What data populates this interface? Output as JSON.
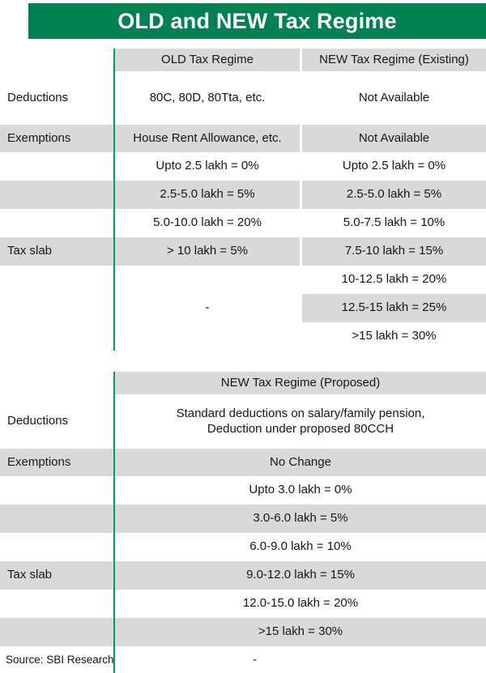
{
  "title": "OLD and NEW Tax Regime",
  "colors": {
    "banner_green": "#008153",
    "divider_green": "#009e5b",
    "stripe_gray": "#d9d9d9",
    "title_text": "#ffffff"
  },
  "footer": {
    "source": "Source: SBI Research",
    "dash": "-"
  },
  "chart_data": [
    {
      "type": "table",
      "col_headers": {
        "old": "OLD Tax Regime",
        "new": "NEW Tax Regime (Existing)"
      },
      "deductions": {
        "label": "Deductions",
        "old": "80C, 80D, 80Tta, etc.",
        "new": "Not Available"
      },
      "exemptions": {
        "label": "Exemptions",
        "old": "House Rent Allowance, etc.",
        "new": "Not Available"
      },
      "tax_slab": {
        "label": "Tax slab",
        "old": [
          "Upto 2.5 lakh = 0%",
          "2.5-5.0 lakh = 5%",
          "5.0-10.0 lakh = 20%",
          "> 10 lakh  = 5%"
        ],
        "old_blank": "-",
        "new": [
          "Upto 2.5 lakh = 0%",
          "2.5-5.0 lakh = 5%",
          "5.0-7.5 lakh = 10%",
          "7.5-10 lakh = 15%",
          "10-12.5 lakh = 20%",
          "12.5-15 lakh = 25%",
          ">15 lakh = 30%"
        ]
      }
    },
    {
      "type": "table",
      "header": "NEW Tax Regime (Proposed)",
      "deductions": {
        "label": "Deductions",
        "value_line1": "Standard deductions on salary/family pension,",
        "value_line2": "Deduction under proposed 80CCH"
      },
      "exemptions": {
        "label": "Exemptions",
        "value": "No Change"
      },
      "tax_slab": {
        "label": "Tax slab",
        "slabs": [
          "Upto 3.0 lakh = 0%",
          "3.0-6.0 lakh = 5%",
          "6.0-9.0 lakh = 10%",
          "9.0-12.0 lakh = 15%",
          "12.0-15.0 lakh = 20%",
          ">15 lakh = 30%"
        ]
      }
    }
  ]
}
